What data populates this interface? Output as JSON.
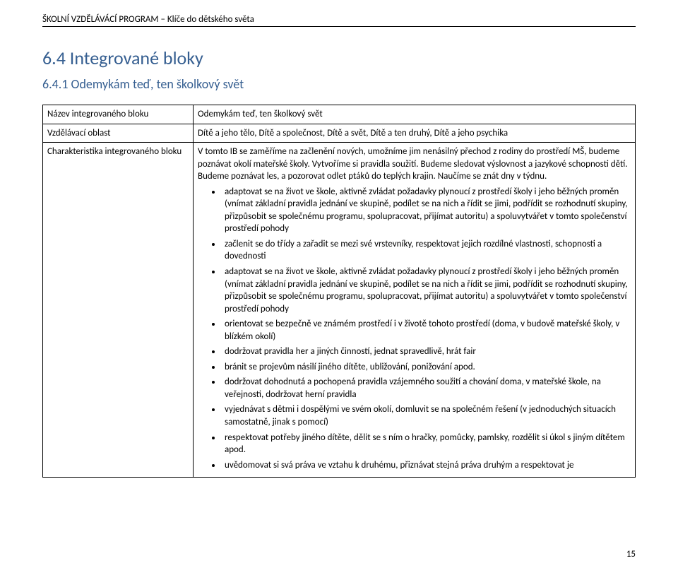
{
  "header": "ŠKOLNÍ VZDĚLÁVÁCÍ PROGRAM – Klíče do dětského světa",
  "section_title": "6.4 Integrované bloky",
  "subsection_title": "6.4.1 Odemykám teď, ten školkový svět",
  "table": {
    "rows": [
      {
        "label": "Název integrovaného bloku",
        "value": "Odemykám teď, ten školkový svět"
      },
      {
        "label": "Vzdělávací oblast",
        "value": "Dítě a jeho tělo, Dítě a společnost, Dítě a svět, Dítě a ten druhý, Dítě a jeho psychika"
      }
    ],
    "charakteristika_label": "Charakteristika integrovaného bloku",
    "charakteristika_intro": "V tomto IB se zaměříme na začlenění nových, umožníme jim nenásilný přechod z rodiny do prostředí MŠ, budeme poznávat okolí mateřské školy. Vytvoříme si pravidla soužití. Budeme sledovat výslovnost a jazykové schopnosti dětí. Budeme poznávat les, a pozorovat odlet ptáků do teplých krajin. Naučíme se znát dny v týdnu.",
    "bullets": [
      "adaptovat se na život ve škole, aktivně zvládat požadavky plynoucí z prostředí školy i jeho běžných proměn (vnímat základní pravidla jednání ve skupině, podílet se na nich a řídit se jimi, podřídit se rozhodnutí skupiny, přizpůsobit se společnému programu, spolupracovat, přijímat autoritu) a spoluvytvářet v tomto společenství prostředí pohody",
      "začlenit se do třídy a zařadit se mezi své vrstevníky, respektovat jejich rozdílné vlastnosti, schopnosti a dovednosti",
      "adaptovat se na život ve škole, aktivně zvládat požadavky plynoucí z prostředí školy i jeho běžných proměn (vnímat základní pravidla jednání ve skupině, podílet se na nich a řídit se jimi, podřídit se rozhodnutí skupiny, přizpůsobit se společnému programu, spolupracovat, přijímat autoritu) a spoluvytvářet v tomto společenství prostředí pohody",
      "orientovat se bezpečně ve známém prostředí i v životě tohoto prostředí (doma, v budově mateřské školy, v blízkém okolí)",
      "dodržovat pravidla her a jiných činností, jednat spravedlivě, hrát fair",
      "bránit se projevům násilí jiného dítěte, ubližování, ponižování apod.",
      "dodržovat dohodnutá a pochopená pravidla vzájemného soužití a chování doma, v mateřské škole, na veřejnosti, dodržovat herní pravidla",
      "vyjednávat s dětmi i dospělými ve svém okolí, domluvit se na společném řešení (v jednoduchých situacích samostatně, jinak s pomocí)",
      "respektovat potřeby jiného dítěte, dělit se s ním o hračky, pomůcky, pamlsky, rozdělit si úkol s jiným dítětem apod.",
      "uvědomovat si svá práva ve vztahu k druhému, přiznávat stejná práva druhým a respektovat je"
    ]
  },
  "page_number": "15",
  "colors": {
    "heading": "#365f91",
    "text": "#000000",
    "border": "#000000",
    "background": "#ffffff"
  }
}
